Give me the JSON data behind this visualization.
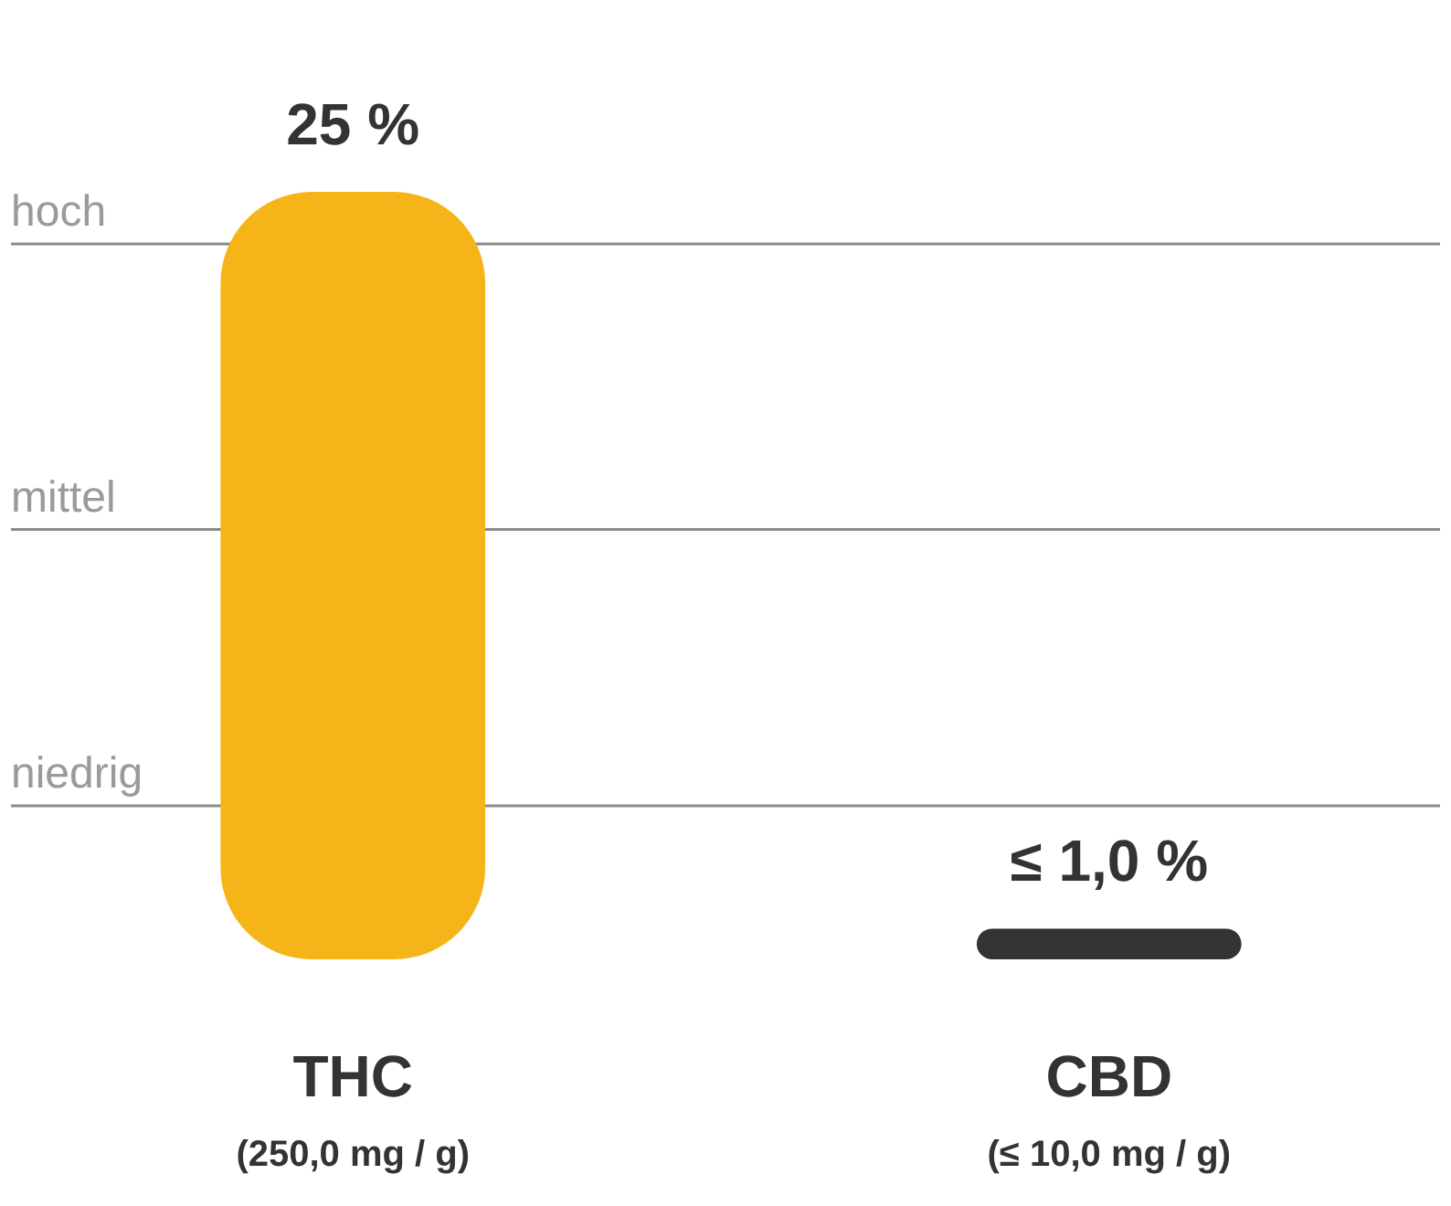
{
  "chart_data": {
    "type": "bar",
    "categories": [
      "THC\n(250,0 mg / g)",
      "CBD\n(≤ 10,0 mg / g)"
    ],
    "values": [
      25,
      1.0
    ],
    "value_labels": [
      "25 %",
      "≤ 1,0 %"
    ],
    "colors": [
      "#f5b417",
      "#333333"
    ],
    "ref_lines": [
      {
        "axis": "y",
        "value": 5,
        "label": "niedrig",
        "color": "#8a8a8a"
      },
      {
        "axis": "y",
        "value": 14,
        "label": "mittel",
        "color": "#8a8a8a"
      },
      {
        "axis": "y",
        "value": 23.3,
        "label": "hoch",
        "color": "#8a8a8a"
      }
    ]
  }
}
